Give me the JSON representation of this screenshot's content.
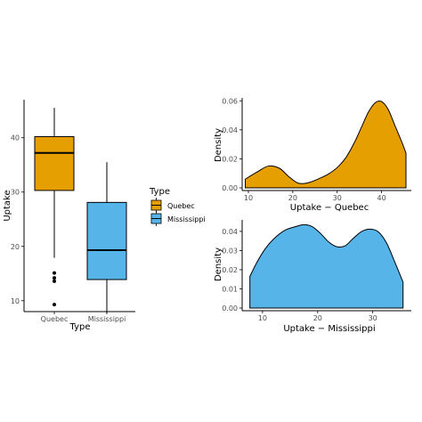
{
  "colors": {
    "quebec": "#E69F00",
    "mississippi": "#56B4E9",
    "outline": "#000000"
  },
  "chart_data": [
    {
      "type": "box",
      "xlabel": "Type",
      "ylabel": "Uptake",
      "categories": [
        "Quebec",
        "Mississippi"
      ],
      "yticks": [
        10,
        20,
        30,
        40
      ],
      "ylim": [
        8,
        47
      ],
      "series": [
        {
          "category": "Quebec",
          "whisker_low": 17.9,
          "q1": 30.3,
          "median": 37.2,
          "q3": 40.2,
          "whisker_high": 45.5,
          "outliers": [
            9.3,
            13.6,
            14.2,
            15.1
          ]
        },
        {
          "category": "Mississippi",
          "whisker_low": 7.7,
          "q1": 13.9,
          "median": 19.3,
          "q3": 28.1,
          "whisker_high": 35.5,
          "outliers": []
        }
      ],
      "legend": {
        "title": "Type",
        "position": "right",
        "entries": [
          "Quebec",
          "Mississippi"
        ]
      }
    },
    {
      "type": "area",
      "xlabel": "Uptake − Quebec",
      "ylabel": "Density",
      "xticks": [
        10,
        20,
        30,
        40
      ],
      "yticks": [
        "0.00",
        "0.02",
        "0.04",
        "0.06"
      ],
      "xlim": [
        8.6,
        46.7
      ],
      "ylim": [
        0,
        0.062
      ],
      "x": [
        9.3,
        12,
        14.5,
        17,
        19,
        21,
        22.5,
        24,
        26,
        28,
        30,
        32,
        34,
        35.5,
        37,
        38.5,
        40,
        41.5,
        43,
        44.5,
        45.5
      ],
      "y": [
        0.006,
        0.011,
        0.015,
        0.0135,
        0.008,
        0.0035,
        0.003,
        0.004,
        0.0065,
        0.0095,
        0.014,
        0.021,
        0.032,
        0.042,
        0.052,
        0.0585,
        0.0595,
        0.054,
        0.043,
        0.032,
        0.024
      ]
    },
    {
      "type": "area",
      "xlabel": "Uptake − Mississippi",
      "ylabel": "Density",
      "xticks": [
        10,
        20,
        30
      ],
      "yticks": [
        "0.00",
        "0.01",
        "0.02",
        "0.03",
        "0.04"
      ],
      "xlim": [
        6.3,
        37
      ],
      "ylim": [
        0,
        0.046
      ],
      "x": [
        7.7,
        9,
        10.5,
        12,
        14,
        16,
        17.5,
        19,
        20.5,
        22,
        23.5,
        25,
        26.5,
        28,
        29.5,
        31,
        32.5,
        34,
        35.5
      ],
      "y": [
        0.0165,
        0.024,
        0.031,
        0.036,
        0.0405,
        0.0425,
        0.0435,
        0.0425,
        0.039,
        0.0345,
        0.032,
        0.0325,
        0.0365,
        0.04,
        0.0412,
        0.0398,
        0.034,
        0.024,
        0.0135
      ]
    }
  ]
}
